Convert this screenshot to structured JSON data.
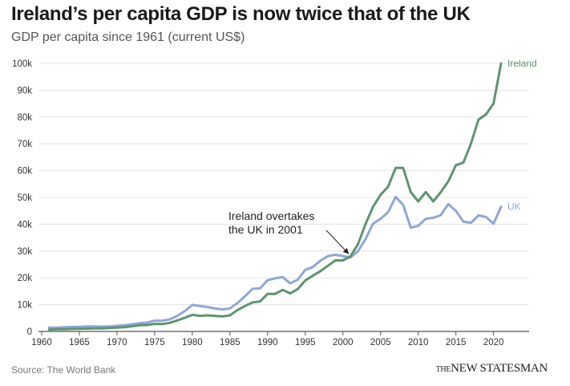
{
  "header": {
    "title": "Ireland’s per capita GDP is now twice that of the UK",
    "subtitle": "GDP per capita since 1961 (current US$)"
  },
  "footer": {
    "source": "Source: The World Bank",
    "brand_prefix": "THE",
    "brand_name": "NEW STATESMAN"
  },
  "chart_data": {
    "type": "line",
    "title": "Ireland’s per capita GDP is now twice that of the UK",
    "subtitle": "GDP per capita since 1961 (current US$)",
    "xlabel": "",
    "ylabel": "",
    "xlim": [
      1960,
      2021
    ],
    "ylim": [
      0,
      100000
    ],
    "x_ticks": [
      1960,
      1965,
      1970,
      1975,
      1980,
      1985,
      1990,
      1995,
      2000,
      2005,
      2010,
      2015,
      2020
    ],
    "y_ticks": [
      0,
      10000,
      20000,
      30000,
      40000,
      50000,
      60000,
      70000,
      80000,
      90000,
      100000
    ],
    "y_tick_labels": [
      "0",
      "10k",
      "20k",
      "30k",
      "40k",
      "50k",
      "60k",
      "70k",
      "80k",
      "90k",
      "100k"
    ],
    "grid": true,
    "legend": "direct labels at line ends",
    "x": [
      1961,
      1962,
      1963,
      1964,
      1965,
      1966,
      1967,
      1968,
      1969,
      1970,
      1971,
      1972,
      1973,
      1974,
      1975,
      1976,
      1977,
      1978,
      1979,
      1980,
      1981,
      1982,
      1983,
      1984,
      1985,
      1986,
      1987,
      1988,
      1989,
      1990,
      1991,
      1992,
      1993,
      1994,
      1995,
      1996,
      1997,
      1998,
      1999,
      2000,
      2001,
      2002,
      2003,
      2004,
      2005,
      2006,
      2007,
      2008,
      2009,
      2010,
      2011,
      2012,
      2013,
      2014,
      2015,
      2016,
      2017,
      2018,
      2019,
      2020,
      2021
    ],
    "series": [
      {
        "name": "Ireland",
        "color": "#5e9470",
        "values": [
          700,
          800,
          850,
          920,
          1000,
          1050,
          1100,
          1150,
          1300,
          1400,
          1600,
          1950,
          2300,
          2400,
          2800,
          2750,
          3200,
          4100,
          5100,
          6200,
          5800,
          6000,
          5800,
          5600,
          6000,
          8000,
          9500,
          10800,
          11200,
          14000,
          14000,
          15500,
          14200,
          15800,
          19000,
          20800,
          22500,
          24500,
          26500,
          26500,
          28000,
          32500,
          40000,
          46500,
          51000,
          54000,
          61000,
          61000,
          52000,
          48500,
          52000,
          48500,
          52000,
          56000,
          62000,
          63000,
          70000,
          79000,
          81000,
          85000,
          100000
        ]
      },
      {
        "name": "UK",
        "color": "#8ea8d6",
        "values": [
          1400,
          1450,
          1550,
          1650,
          1750,
          1850,
          1900,
          1800,
          1900,
          2100,
          2350,
          2650,
          3050,
          3300,
          4000,
          4000,
          4500,
          5800,
          7600,
          9900,
          9500,
          9100,
          8600,
          8200,
          8600,
          10600,
          13100,
          15900,
          16100,
          19100,
          19800,
          20300,
          17900,
          19300,
          23000,
          24000,
          26400,
          28100,
          28600,
          28100,
          27600,
          29900,
          34400,
          40200,
          42000,
          44500,
          50200,
          47200,
          38700,
          39400,
          42000,
          42400,
          43400,
          47500,
          45000,
          41000,
          40500,
          43300,
          42700,
          40200,
          46500
        ]
      }
    ],
    "annotations": [
      {
        "text_lines": [
          "Ireland overtakes",
          "the UK in 2001"
        ],
        "x": 2001,
        "y": 28000
      }
    ]
  }
}
